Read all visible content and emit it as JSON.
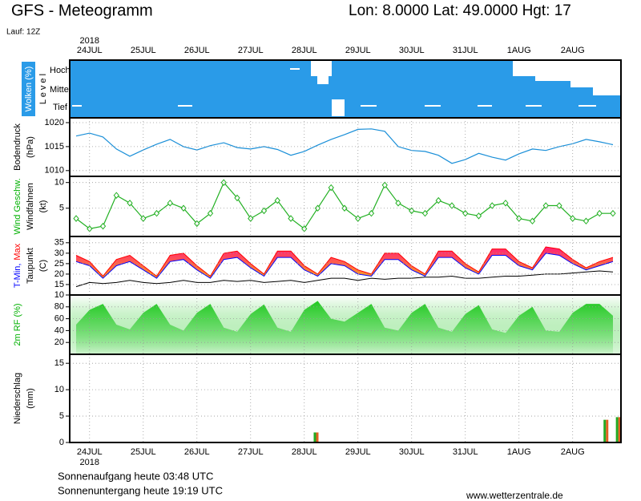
{
  "header": {
    "title": "GFS - Meteogramm",
    "location": "Lon: 8.0000 Lat: 49.0000 Hgt: 17",
    "run": "Lauf: 12Z"
  },
  "x_axis": {
    "year": "2018",
    "xlim": [
      23.63,
      33.9
    ],
    "xticks": [
      {
        "value": 24,
        "label": "24JUL"
      },
      {
        "value": 25,
        "label": "25JUL"
      },
      {
        "value": 26,
        "label": "26JUL"
      },
      {
        "value": 27,
        "label": "27JUL"
      },
      {
        "value": 28,
        "label": "28JUL"
      },
      {
        "value": 29,
        "label": "29JUL"
      },
      {
        "value": 30,
        "label": "30JUL"
      },
      {
        "value": 31,
        "label": "31JUL"
      },
      {
        "value": 32,
        "label": "1AUG"
      },
      {
        "value": 33,
        "label": "2AUG"
      }
    ]
  },
  "clouds_panel": {
    "label": "Wolken (%)",
    "level_label": "L e v e l",
    "levels": [
      "Hoch",
      "Mittel",
      "Tief"
    ]
  },
  "chart_data": [
    {
      "type": "line",
      "ylabel": [
        {
          "text": "Bodendruck"
        },
        {
          "text": "(hPa)"
        }
      ],
      "x": [
        23.75,
        24,
        24.25,
        24.5,
        24.75,
        25,
        25.25,
        25.5,
        25.75,
        26,
        26.25,
        26.5,
        26.75,
        27,
        27.25,
        27.5,
        27.75,
        28,
        28.25,
        28.5,
        28.75,
        29,
        29.25,
        29.5,
        29.75,
        30,
        30.25,
        30.5,
        30.75,
        31,
        31.25,
        31.5,
        31.75,
        32,
        32.25,
        32.5,
        32.75,
        33,
        33.25,
        33.5,
        33.75
      ],
      "series": [
        {
          "color": "#1a8fd8",
          "values": [
            1017.2,
            1017.8,
            1017,
            1014.5,
            1013,
            1014.3,
            1015.5,
            1016.5,
            1015,
            1014.3,
            1015.2,
            1015.8,
            1014.8,
            1014.5,
            1015,
            1014.4,
            1013.2,
            1014,
            1015.3,
            1016.5,
            1017.5,
            1018.6,
            1018.7,
            1018.2,
            1015,
            1014.2,
            1014,
            1013.2,
            1011.5,
            1012.3,
            1013.6,
            1012.8,
            1012.2,
            1013.5,
            1014.5,
            1014.2,
            1015,
            1015.6,
            1016.5,
            1016,
            1015.4
          ]
        }
      ],
      "ylim": [
        1008.8,
        1021
      ],
      "yticks": [
        1010,
        1015,
        1020
      ],
      "grid": true
    },
    {
      "type": "line",
      "markers": true,
      "ylabel": [
        {
          "text": "Wind Geschw.",
          "color": "#00b000"
        },
        {
          "text": "Windfahnen"
        },
        {
          "text": "(kt)"
        }
      ],
      "x": [
        23.75,
        24,
        24.25,
        24.5,
        24.75,
        25,
        25.25,
        25.5,
        25.75,
        26,
        26.25,
        26.5,
        26.75,
        27,
        27.25,
        27.5,
        27.75,
        28,
        28.25,
        28.5,
        28.75,
        29,
        29.25,
        29.5,
        29.75,
        30,
        30.25,
        30.5,
        30.75,
        31,
        31.25,
        31.5,
        31.75,
        32,
        32.25,
        32.5,
        32.75,
        33,
        33.25,
        33.5,
        33.75
      ],
      "series": [
        {
          "color": "#22b022",
          "values": [
            3,
            1,
            1.5,
            7.5,
            6,
            3,
            4,
            6,
            5,
            2,
            4,
            10,
            7,
            3,
            4.5,
            6.5,
            3,
            1,
            5,
            9,
            5,
            3,
            4,
            9.5,
            6,
            4.5,
            4,
            6.5,
            5.5,
            4,
            3.5,
            5.5,
            6,
            3,
            2.5,
            5.5,
            5.5,
            3,
            2.5,
            4,
            4
          ]
        }
      ],
      "ylim": [
        -0.5,
        11.2
      ],
      "yticks": [
        5,
        10
      ],
      "grid": true
    },
    {
      "type": "band",
      "fill": [
        "#ff1e78",
        "#ffa020"
      ],
      "ylabel": [
        {
          "parts": [
            {
              "text": "T-Min,",
              "color": "#0000ff"
            },
            {
              "text": "Max",
              "color": "#ff0000"
            }
          ]
        },
        {
          "text": "Taupunkt"
        },
        {
          "text": "(C)"
        }
      ],
      "x": [
        23.75,
        24,
        24.25,
        24.5,
        24.75,
        25,
        25.25,
        25.5,
        25.75,
        26,
        26.25,
        26.5,
        26.75,
        27,
        27.25,
        27.5,
        27.75,
        28,
        28.25,
        28.5,
        28.75,
        29,
        29.25,
        29.5,
        29.75,
        30,
        30.25,
        30.5,
        30.75,
        31,
        31.25,
        31.5,
        31.75,
        32,
        32.25,
        32.5,
        32.75,
        33,
        33.25,
        33.5,
        33.75
      ],
      "series": [
        {
          "color": "#0000ff",
          "values": [
            26,
            24,
            18,
            24,
            26,
            22,
            18,
            26,
            27,
            22,
            18,
            27,
            28,
            23,
            19,
            28,
            28,
            22,
            19,
            25,
            24,
            20,
            19,
            27,
            27,
            22,
            19,
            28,
            28,
            23,
            20,
            29,
            29,
            24,
            22,
            30,
            29,
            25,
            22,
            24,
            26
          ]
        },
        {
          "color": "#ff0000",
          "values": [
            29,
            26,
            19,
            27,
            29,
            24,
            19,
            29,
            30,
            24,
            19,
            30,
            31,
            25,
            20,
            31,
            31,
            24,
            20,
            28,
            26,
            22,
            20,
            30,
            30,
            24,
            20,
            31,
            31,
            25,
            21,
            32,
            32,
            26,
            23,
            33,
            32,
            27,
            23,
            26,
            28
          ]
        },
        {
          "color": "#000000",
          "values": [
            14,
            16,
            15.5,
            16,
            17,
            16,
            15.5,
            16,
            17,
            16,
            16,
            17,
            16.5,
            17,
            16,
            16.5,
            17,
            16,
            17,
            18,
            18,
            17,
            18,
            17.5,
            18,
            18,
            18.5,
            18.5,
            19,
            18,
            18,
            18.5,
            19,
            19,
            19.5,
            20,
            20,
            20.5,
            21,
            21.5,
            21
          ]
        }
      ],
      "ylim": [
        10,
        38
      ],
      "yticks": [
        10,
        15,
        20,
        25,
        30,
        35
      ],
      "grid": true
    },
    {
      "type": "area",
      "color": "#20c820",
      "ylabel": [
        {
          "text": "2m RF (%)",
          "color": "#00b000"
        }
      ],
      "x": [
        23.75,
        24,
        24.25,
        24.5,
        24.75,
        25,
        25.25,
        25.5,
        25.75,
        26,
        26.25,
        26.5,
        26.75,
        27,
        27.25,
        27.5,
        27.75,
        28,
        28.25,
        28.5,
        28.75,
        29,
        29.25,
        29.5,
        29.75,
        30,
        30.25,
        30.5,
        30.75,
        31,
        31.25,
        31.5,
        31.75,
        32,
        32.25,
        32.5,
        32.75,
        33,
        33.25,
        33.5,
        33.75
      ],
      "values": [
        50,
        75,
        85,
        50,
        42,
        70,
        85,
        50,
        40,
        70,
        85,
        45,
        38,
        68,
        84,
        45,
        38,
        75,
        90,
        60,
        55,
        70,
        85,
        45,
        40,
        70,
        85,
        45,
        38,
        68,
        83,
        42,
        36,
        65,
        80,
        40,
        38,
        70,
        85,
        85,
        65
      ],
      "ylim": [
        0,
        100
      ],
      "yticks": [
        20,
        40,
        60,
        80
      ],
      "grid": true
    },
    {
      "type": "bar",
      "ylabel": [
        {
          "text": "Niederschlag"
        },
        {
          "text": "(mm)"
        }
      ],
      "x": [
        28.22,
        33.62,
        33.85
      ],
      "series": [
        {
          "color": "#22aa22",
          "values": [
            1.9,
            4.3,
            4.8
          ]
        },
        {
          "color": "#e06020",
          "values": [
            1.9,
            4.3,
            4.8
          ]
        }
      ],
      "ylim": [
        0,
        16.7
      ],
      "yticks": [
        0,
        5,
        10,
        15
      ],
      "grid": true
    }
  ],
  "footer": {
    "sunrise": "Sonnenaufgang heute 03:48 UTC",
    "sunset": "Sonnenuntergang heute 19:19 UTC",
    "source": "www.wetterzentrale.de"
  }
}
